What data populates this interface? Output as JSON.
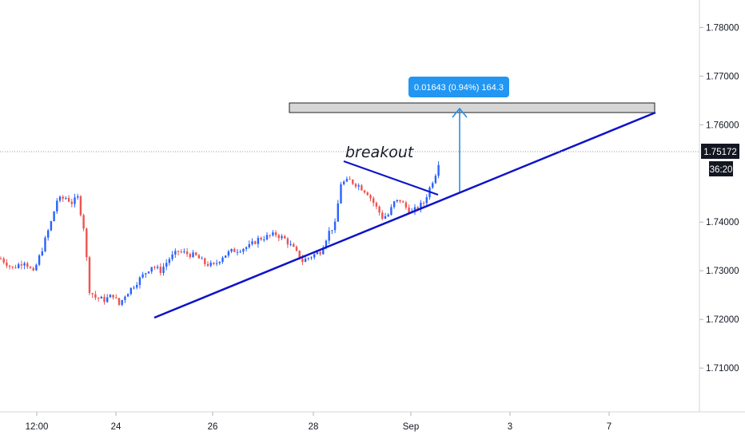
{
  "chart_data": {
    "type": "candlestick",
    "title": "",
    "colors": {
      "up": "#2962ff",
      "down": "#ef5350",
      "trendline": "#0d14c8",
      "measure": "#2a8de0",
      "measure_label_bg": "#2196f3",
      "last_price_bg": "#131722",
      "axis_text": "#131722",
      "zone_fill": "#d6d6d6"
    },
    "y_axis": {
      "ticks": [
        "1.78000",
        "1.77000",
        "1.76000",
        "1.74000",
        "1.73000",
        "1.72000",
        "1.71000"
      ],
      "range": [
        1.701,
        1.784
      ]
    },
    "x_axis": {
      "ticks": [
        "12:00",
        "24",
        "26",
        "28",
        "Sep",
        "3",
        "7"
      ]
    },
    "last_price": {
      "value": "1.75172",
      "countdown": "36:20"
    },
    "series_anchors": [
      {
        "x": 0,
        "y": 1.7325
      },
      {
        "x": 4,
        "y": 1.7305
      },
      {
        "x": 8,
        "y": 1.732
      },
      {
        "x": 11,
        "y": 1.7295
      },
      {
        "x": 14,
        "y": 1.7345
      },
      {
        "x": 17,
        "y": 1.74
      },
      {
        "x": 19,
        "y": 1.7445
      },
      {
        "x": 22,
        "y": 1.745
      },
      {
        "x": 24,
        "y": 1.744
      },
      {
        "x": 26,
        "y": 1.745
      },
      {
        "x": 28,
        "y": 1.739
      },
      {
        "x": 30,
        "y": 1.726
      },
      {
        "x": 32,
        "y": 1.7245
      },
      {
        "x": 35,
        "y": 1.724
      },
      {
        "x": 38,
        "y": 1.725
      },
      {
        "x": 40,
        "y": 1.723
      },
      {
        "x": 42,
        "y": 1.725
      },
      {
        "x": 45,
        "y": 1.727
      },
      {
        "x": 48,
        "y": 1.729
      },
      {
        "x": 51,
        "y": 1.731
      },
      {
        "x": 54,
        "y": 1.73
      },
      {
        "x": 57,
        "y": 1.7325
      },
      {
        "x": 60,
        "y": 1.734
      },
      {
        "x": 63,
        "y": 1.7335
      },
      {
        "x": 66,
        "y": 1.733
      },
      {
        "x": 69,
        "y": 1.7315
      },
      {
        "x": 72,
        "y": 1.731
      },
      {
        "x": 75,
        "y": 1.733
      },
      {
        "x": 78,
        "y": 1.734
      },
      {
        "x": 81,
        "y": 1.7345
      },
      {
        "x": 84,
        "y": 1.735
      },
      {
        "x": 87,
        "y": 1.7365
      },
      {
        "x": 90,
        "y": 1.737
      },
      {
        "x": 93,
        "y": 1.7375
      },
      {
        "x": 96,
        "y": 1.7365
      },
      {
        "x": 99,
        "y": 1.7345
      },
      {
        "x": 102,
        "y": 1.732
      },
      {
        "x": 105,
        "y": 1.733
      },
      {
        "x": 108,
        "y": 1.734
      },
      {
        "x": 111,
        "y": 1.738
      },
      {
        "x": 113,
        "y": 1.7395
      },
      {
        "x": 115,
        "y": 1.748
      },
      {
        "x": 118,
        "y": 1.7485
      },
      {
        "x": 121,
        "y": 1.7475
      },
      {
        "x": 124,
        "y": 1.746
      },
      {
        "x": 127,
        "y": 1.743
      },
      {
        "x": 129,
        "y": 1.741
      },
      {
        "x": 131,
        "y": 1.7415
      },
      {
        "x": 133,
        "y": 1.744
      },
      {
        "x": 135,
        "y": 1.7445
      },
      {
        "x": 137,
        "y": 1.743
      },
      {
        "x": 139,
        "y": 1.742
      },
      {
        "x": 141,
        "y": 1.743
      },
      {
        "x": 143,
        "y": 1.744
      },
      {
        "x": 145,
        "y": 1.747
      },
      {
        "x": 147,
        "y": 1.75
      },
      {
        "x": 148,
        "y": 1.7517
      }
    ],
    "annotations": {
      "breakout_text": "breakout",
      "measure_label": "0.01643 (0.94%) 164.3"
    }
  }
}
